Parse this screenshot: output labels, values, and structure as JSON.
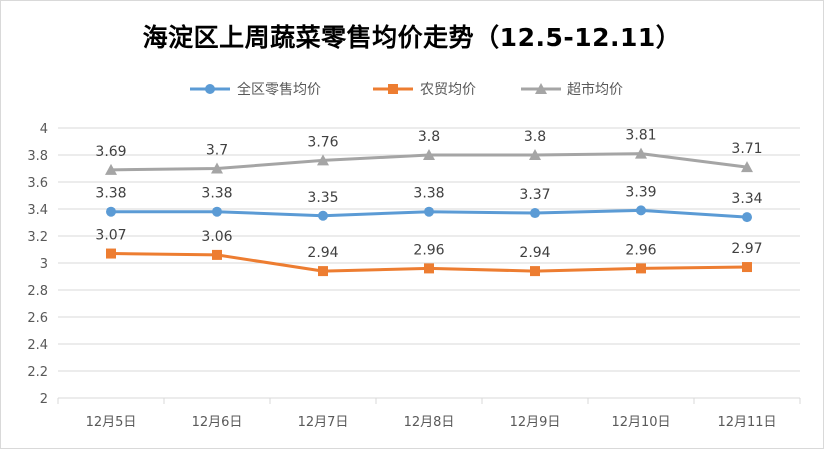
{
  "chart_data": {
    "type": "line",
    "title": "海淀区上周蔬菜零售均价走势（12.5-12.11）",
    "categories": [
      "12月5日",
      "12月6日",
      "12月7日",
      "12月8日",
      "12月9日",
      "12月10日",
      "12月11日"
    ],
    "ylim": [
      2,
      4
    ],
    "yticks": [
      "2",
      "2.2",
      "2.4",
      "2.6",
      "2.8",
      "3",
      "3.2",
      "3.4",
      "3.6",
      "3.8",
      "4"
    ],
    "grid": true,
    "legend": "top",
    "series": [
      {
        "name": "全区零售均价",
        "color": "#5b9bd5",
        "marker": "circle",
        "values": [
          3.38,
          3.38,
          3.35,
          3.38,
          3.37,
          3.39,
          3.34
        ],
        "labels": [
          "3.38",
          "3.38",
          "3.35",
          "3.38",
          "3.37",
          "3.39",
          "3.34"
        ]
      },
      {
        "name": "农贸均价",
        "color": "#ed7d31",
        "marker": "square",
        "values": [
          3.07,
          3.06,
          2.94,
          2.96,
          2.94,
          2.96,
          2.97
        ],
        "labels": [
          "3.07",
          "3.06",
          "2.94",
          "2.96",
          "2.94",
          "2.96",
          "2.97"
        ]
      },
      {
        "name": "超市均价",
        "color": "#a5a5a5",
        "marker": "triangle",
        "values": [
          3.69,
          3.7,
          3.76,
          3.8,
          3.8,
          3.81,
          3.71
        ],
        "labels": [
          "3.69",
          "3.7",
          "3.76",
          "3.8",
          "3.8",
          "3.81",
          "3.71"
        ]
      }
    ]
  }
}
